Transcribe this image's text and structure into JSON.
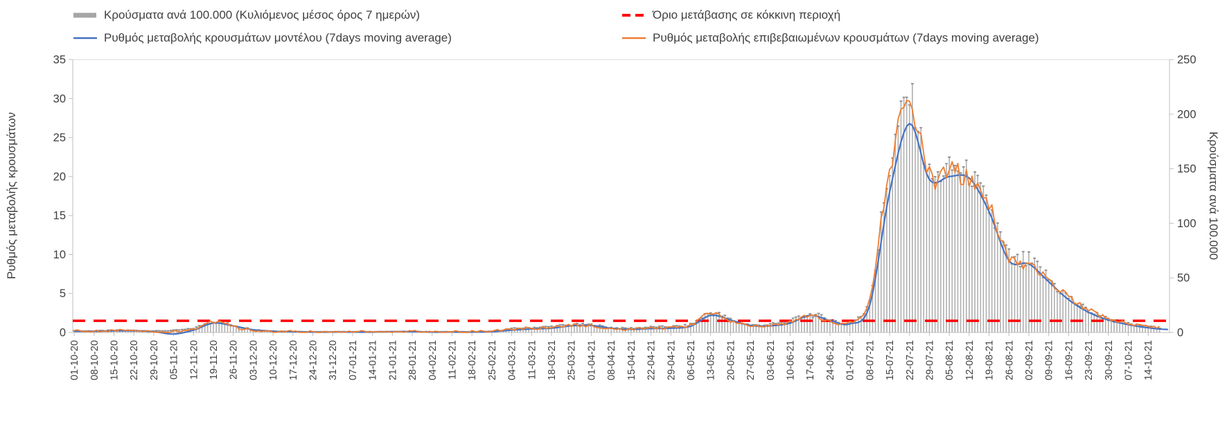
{
  "legend": {
    "items": [
      {
        "label": "Κρούσματα ανά 100.000 (Κυλιόμενος μέσος όρος 7 ημερών)",
        "type": "bar",
        "color": "#A6A6A6"
      },
      {
        "label": "Όριο μετάβασης σε κόκκινη περιοχή",
        "type": "dashed-line",
        "color": "#FF0000"
      },
      {
        "label": "Ρυθμός μεταβολής κρουσμάτων μοντέλου (7days moving average)",
        "type": "line",
        "color": "#4472C4"
      },
      {
        "label": "Ρυθμός μεταβολής επιβεβαιωμένων κρουσμάτων (7days moving average)",
        "type": "line",
        "color": "#ED7D31"
      }
    ]
  },
  "chart_data": {
    "type": "mixed",
    "title": "",
    "legend_position": "top",
    "grid": false,
    "x_labels": [
      "01-10-20",
      "08-10-20",
      "15-10-20",
      "22-10-20",
      "29-10-20",
      "05-11-20",
      "12-11-20",
      "19-11-20",
      "26-11-20",
      "03-12-20",
      "10-12-20",
      "17-12-20",
      "24-12-20",
      "31-12-20",
      "07-01-21",
      "14-01-21",
      "21-01-21",
      "28-01-21",
      "04-02-21",
      "11-02-21",
      "18-02-21",
      "25-02-21",
      "04-03-21",
      "11-03-21",
      "18-03-21",
      "25-03-21",
      "01-04-21",
      "08-04-21",
      "15-04-21",
      "22-04-21",
      "29-04-21",
      "06-05-21",
      "13-05-21",
      "20-05-21",
      "27-05-21",
      "03-06-21",
      "10-06-21",
      "17-06-21",
      "24-06-21",
      "01-07-21",
      "08-07-21",
      "15-07-21",
      "22-07-21",
      "29-07-21",
      "05-08-21",
      "12-08-21",
      "19-08-21",
      "26-08-21",
      "02-09-21",
      "09-09-21",
      "16-09-21",
      "23-09-21",
      "30-09-21",
      "07-10-21",
      "14-10-21"
    ],
    "left_axis": {
      "label": "Ρυθμός μεταβολής κρουσμάτων",
      "min": 0,
      "max": 35,
      "ticks": [
        0,
        5,
        10,
        15,
        20,
        25,
        30,
        35
      ]
    },
    "right_axis": {
      "label": "Κρούσματα ανά 100.000",
      "min": 0,
      "max": 250,
      "ticks": [
        0,
        50,
        100,
        150,
        200,
        250
      ]
    },
    "threshold_red_line": {
      "axis": "left",
      "value": 1.5,
      "color": "#FF0000",
      "style": "dashed"
    },
    "series": [
      {
        "name": "Κρούσματα ανά 100.000 (Κυλιόμενος μέσος όρος 7 ημερών)",
        "type": "bar",
        "axis": "right",
        "color": "#A6A6A6",
        "weekly_values": [
          1.5,
          1.5,
          2,
          2,
          1.5,
          2,
          4,
          10,
          6.5,
          3,
          1.5,
          1,
          0.8,
          0.8,
          0.8,
          0.8,
          1,
          1,
          0.8,
          0.8,
          0.8,
          1.2,
          3.5,
          4.5,
          5.5,
          7,
          7,
          4.5,
          4,
          5,
          5.5,
          7.5,
          18,
          12,
          7,
          7.5,
          10.5,
          16.5,
          12,
          9.5,
          33,
          150,
          215,
          145,
          150,
          145,
          115,
          68,
          64,
          49,
          32,
          20,
          12.5,
          8,
          5.5
        ]
      },
      {
        "name": "Ρυθμός μεταβολής κρουσμάτων μοντέλου (7days moving average)",
        "type": "line",
        "axis": "left",
        "color": "#4472C4",
        "weekly_values": [
          0.15,
          0.15,
          0.2,
          0.2,
          0.1,
          -0.2,
          0.3,
          1.2,
          0.85,
          0.35,
          0.15,
          0.1,
          0.05,
          0.05,
          0.05,
          0.05,
          0.1,
          0.1,
          0.05,
          0.05,
          0.05,
          0.1,
          0.3,
          0.45,
          0.55,
          0.85,
          0.9,
          0.55,
          0.4,
          0.5,
          0.55,
          0.8,
          2.2,
          1.6,
          0.9,
          0.85,
          1.2,
          2.2,
          1.55,
          1.1,
          3.5,
          18,
          26.8,
          19.6,
          20,
          19.8,
          15.5,
          9.2,
          8.8,
          6.5,
          4.2,
          2.6,
          1.6,
          1.0,
          0.6
        ]
      },
      {
        "name": "Ρυθμός μεταβολής επιβεβαιωμένων κρουσμάτων (7days moving average)",
        "type": "line",
        "axis": "left",
        "color": "#ED7D31",
        "weekly_values": [
          0.25,
          0.2,
          0.25,
          0.3,
          0.15,
          0.1,
          0.45,
          1.35,
          0.75,
          0.3,
          0.12,
          0.15,
          0.06,
          0.06,
          0.1,
          0.06,
          0.12,
          0.12,
          0.06,
          0.06,
          0.1,
          0.15,
          0.45,
          0.55,
          0.65,
          0.95,
          0.85,
          0.5,
          0.45,
          0.6,
          0.6,
          0.95,
          2.45,
          1.45,
          0.85,
          0.95,
          1.3,
          2.1,
          1.4,
          1.2,
          4.5,
          21,
          29,
          20.2,
          20.8,
          19.5,
          16.2,
          9.6,
          8.4,
          6.8,
          4.5,
          2.9,
          1.8,
          1.15,
          0.8
        ]
      }
    ]
  }
}
